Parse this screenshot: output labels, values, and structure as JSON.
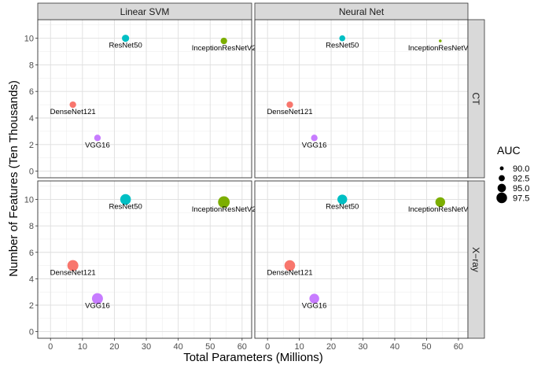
{
  "chart_data": {
    "type": "scatter",
    "xlabel": "Total Parameters (Millions)",
    "ylabel": "Number of Features (Ten Thousands)",
    "xlim": [
      -4,
      63
    ],
    "ylim": [
      -0.5,
      11.4
    ],
    "x_ticks": [
      0,
      10,
      20,
      30,
      40,
      50,
      60
    ],
    "y_ticks": [
      0,
      2,
      4,
      6,
      8,
      10
    ],
    "grid": true,
    "columns": [
      "Linear SVM",
      "Neural Net"
    ],
    "rows": [
      "CT",
      "X−ray"
    ],
    "legend": {
      "title": "AUC",
      "placement": "right",
      "entries": [
        {
          "label": "90.0",
          "value": 90.0
        },
        {
          "label": "92.5",
          "value": 92.5
        },
        {
          "label": "95.0",
          "value": 95.0
        },
        {
          "label": "97.5",
          "value": 97.5
        }
      ]
    },
    "models": [
      {
        "name": "DenseNet121",
        "x": 7.0,
        "y": 5.0,
        "color": "#F8766D"
      },
      {
        "name": "InceptionResNetV2",
        "x": 54.3,
        "y": 9.8,
        "color": "#7CAE00"
      },
      {
        "name": "ResNet50",
        "x": 23.5,
        "y": 10.0,
        "color": "#00BFC4"
      },
      {
        "name": "VGG16",
        "x": 14.7,
        "y": 2.5,
        "color": "#C77CFF"
      }
    ],
    "panels": [
      {
        "row": 0,
        "col": 0,
        "auc": {
          "DenseNet121": 92.6,
          "InceptionResNetV2": 92.6,
          "ResNet50": 93.3,
          "VGG16": 92.6
        }
      },
      {
        "row": 0,
        "col": 1,
        "auc": {
          "DenseNet121": 92.6,
          "InceptionResNetV2": 88.6,
          "ResNet50": 92.0,
          "VGG16": 92.6
        }
      },
      {
        "row": 1,
        "col": 0,
        "auc": {
          "DenseNet121": 97.3,
          "InceptionResNetV2": 98.0,
          "ResNet50": 97.0,
          "VGG16": 97.3
        }
      },
      {
        "row": 1,
        "col": 1,
        "auc": {
          "DenseNet121": 97.0,
          "InceptionResNetV2": 96.0,
          "ResNet50": 96.0,
          "VGG16": 96.0
        }
      }
    ]
  }
}
